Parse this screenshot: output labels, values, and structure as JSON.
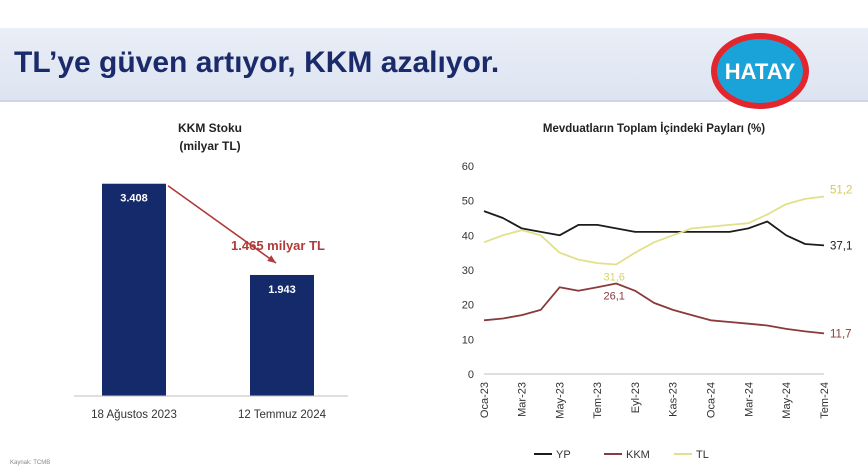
{
  "slide": {
    "title": "TL’ye güven artıyor, KKM azalıyor.",
    "source_text": "Kaynak: TCMB"
  },
  "logo": {
    "text": "HATAY",
    "colors": {
      "ring": "#e3262d",
      "fill": "#1aa3d9",
      "text": "#ffffff"
    }
  },
  "chart_data": [
    {
      "type": "bar",
      "title": "KKM Stoku",
      "subtitle": "(milyar TL)",
      "categories": [
        "18 Ağustos 2023",
        "12 Temmuz 2024"
      ],
      "values": [
        3408,
        1943
      ],
      "value_labels": [
        "3.408",
        "1.943"
      ],
      "annotation": "1.465 milyar TL",
      "bar_color": "#142a6b",
      "arrow_color": "#b23a3a",
      "ylim": [
        0,
        3500
      ]
    },
    {
      "type": "line",
      "title": "Mevduatların Toplam İçindeki Payları (%)",
      "x": [
        "Oca-23",
        "Şub-23",
        "Mar-23",
        "Nis-23",
        "May-23",
        "Haz-23",
        "Tem-23",
        "Ağu-23",
        "Eyl-23",
        "Eki-23",
        "Kas-23",
        "Ara-23",
        "Oca-24",
        "Şub-24",
        "Mar-24",
        "Nis-24",
        "May-24",
        "Haz-24",
        "Tem-24"
      ],
      "x_tick_labels": [
        "Oca-23",
        "Mar-23",
        "May-23",
        "Tem-23",
        "Eyl-23",
        "Kas-23",
        "Oca-24",
        "Mar-24",
        "May-24",
        "Tem-24"
      ],
      "ylim": [
        0,
        60
      ],
      "y_ticks": [
        0,
        10,
        20,
        30,
        40,
        50,
        60
      ],
      "grid": false,
      "legend_position": "bottom",
      "series": [
        {
          "name": "YP",
          "color": "#1c1c1c",
          "values": [
            47,
            45,
            42,
            41,
            40,
            43,
            43,
            42,
            41,
            41,
            41,
            41,
            41,
            41,
            42,
            44,
            40,
            37.5,
            37.1
          ]
        },
        {
          "name": "KKM",
          "color": "#8a3a3a",
          "values": [
            15.5,
            16,
            17,
            18.5,
            25,
            24,
            25,
            26.1,
            24,
            20.5,
            18.5,
            17,
            15.5,
            15,
            14.5,
            14,
            13,
            12.3,
            11.7
          ]
        },
        {
          "name": "TL",
          "color": "#e2e08a",
          "values": [
            38,
            40,
            41.5,
            40,
            35,
            33,
            32,
            31.6,
            35,
            38,
            40,
            42,
            42.5,
            43,
            43.5,
            46,
            49,
            50.5,
            51.2
          ]
        }
      ],
      "end_labels": [
        {
          "series": "YP",
          "text": "37,1"
        },
        {
          "series": "KKM",
          "text": "11,7"
        },
        {
          "series": "TL",
          "text": "51,2"
        }
      ],
      "point_labels": [
        {
          "series": "TL",
          "x": "Ağu-23",
          "text": "31,6"
        },
        {
          "series": "KKM",
          "x": "Ağu-23",
          "text": "26,1"
        }
      ]
    }
  ]
}
